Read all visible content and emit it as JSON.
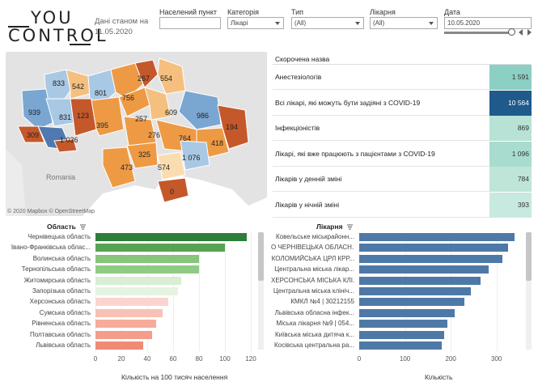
{
  "header": {
    "logo_line1": "YOU",
    "logo_line2": "CONTROL",
    "as_of_line1": "Дані станом на",
    "as_of_line2": "11.05.2020"
  },
  "filters": {
    "settlement": {
      "label": "Населений пункт",
      "value": ""
    },
    "category": {
      "label": "Категорія",
      "value": "Лікарі"
    },
    "type": {
      "label": "Тип",
      "value": "(All)"
    },
    "hospital": {
      "label": "Лікарня",
      "value": "(All)"
    },
    "date": {
      "label": "Дата",
      "value": "10.05.2020"
    }
  },
  "map": {
    "country_label": "Romania",
    "credit": "© 2020 Mapbox © OpenStreetMap",
    "region_values": [
      "833",
      "542",
      "801",
      "267",
      "554",
      "939",
      "831",
      "123",
      "756",
      "1 036",
      "395",
      "257",
      "609",
      "986",
      "309",
      "276",
      "194",
      "764",
      "325",
      "418",
      "473",
      "574",
      "1 076",
      "0"
    ],
    "colors": {
      "dark_orange": "#c4582a",
      "orange": "#ee9a45",
      "light_orange": "#f5c07f",
      "pale_orange": "#f9ddb1",
      "light_blue": "#a9c8e4",
      "blue": "#7aa6d2",
      "dark_blue": "#4f79b0",
      "sea": "#ffffff",
      "land": "#e3e3e3"
    }
  },
  "summary": {
    "header": "Скорочена назва",
    "rows": [
      {
        "label": "Анестезіологів",
        "value": "1 591",
        "color": "#8ccfc3"
      },
      {
        "label": "Всі лікарі, які можуть бути задіяні з COVID-19",
        "value": "10 564",
        "color": "#1f5a8c"
      },
      {
        "label": "Інфекціоністів",
        "value": "869",
        "color": "#b8e2d6"
      },
      {
        "label": "Лікарі, які вже працюють з пацієнтами з COVID-19",
        "value": "1 096",
        "color": "#a8dccf"
      },
      {
        "label": "Лікарів у денній зміні",
        "value": "784",
        "color": "#bfe5d9"
      },
      {
        "label": "Лікарів у нічній зміні",
        "value": "393",
        "color": "#c8e9df"
      }
    ]
  },
  "chart_data": [
    {
      "type": "bar",
      "title": "Область",
      "xlabel": "Кількість на 100 тисяч населення",
      "ticks": [
        "0",
        "20",
        "40",
        "60",
        "80",
        "100",
        "120"
      ],
      "xlim": [
        0,
        120
      ],
      "categories": [
        "Чернівецька область",
        "Івано-Франківська облас...",
        "Волинська область",
        "Тернопільська область",
        "Житомирська область",
        "Запорізька область",
        "Херсонська область",
        "Сумська область",
        "Рівненська область",
        "Полтавська область",
        "Львівська область"
      ],
      "values": [
        117,
        100,
        80,
        80,
        66,
        64,
        56,
        52,
        47,
        44,
        37
      ],
      "colors": [
        "#2e7d3a",
        "#57a353",
        "#86c57a",
        "#8fcb84",
        "#d9eed3",
        "#e6f3e2",
        "#fcd4cf",
        "#f9c1b6",
        "#f6ab9b",
        "#f39d8a",
        "#f08a74"
      ]
    },
    {
      "type": "bar",
      "title": "Лікарня",
      "xlabel": "Кількість",
      "ticks": [
        "0",
        "100",
        "200",
        "300"
      ],
      "xlim": [
        0,
        350
      ],
      "categories": [
        "Ковельське міськрайонн...",
        "О ЧЕРНІВЕЦЬКА ОБЛАСН...",
        "КОЛОМИЙСЬКА ЦРЛ КРР...",
        "Центральна міська лікар...",
        "ХЕРСОНСЬКА МІСЬКА КЛІ...",
        "Центральна міська клініч...",
        "КМКЛ №4 | 30212155",
        "Львівська обласна інфек...",
        "Міська лікарня №9 | 054...",
        "Київська міська дитяча к...",
        "Косівська центральна ра..."
      ],
      "values": [
        340,
        325,
        312,
        283,
        265,
        244,
        230,
        208,
        192,
        186,
        180
      ],
      "colors": [
        "#4e79a7",
        "#4e79a7",
        "#4e79a7",
        "#4e79a7",
        "#4e79a7",
        "#4e79a7",
        "#4e79a7",
        "#4e79a7",
        "#4e79a7",
        "#4e79a7",
        "#4e79a7"
      ]
    }
  ]
}
